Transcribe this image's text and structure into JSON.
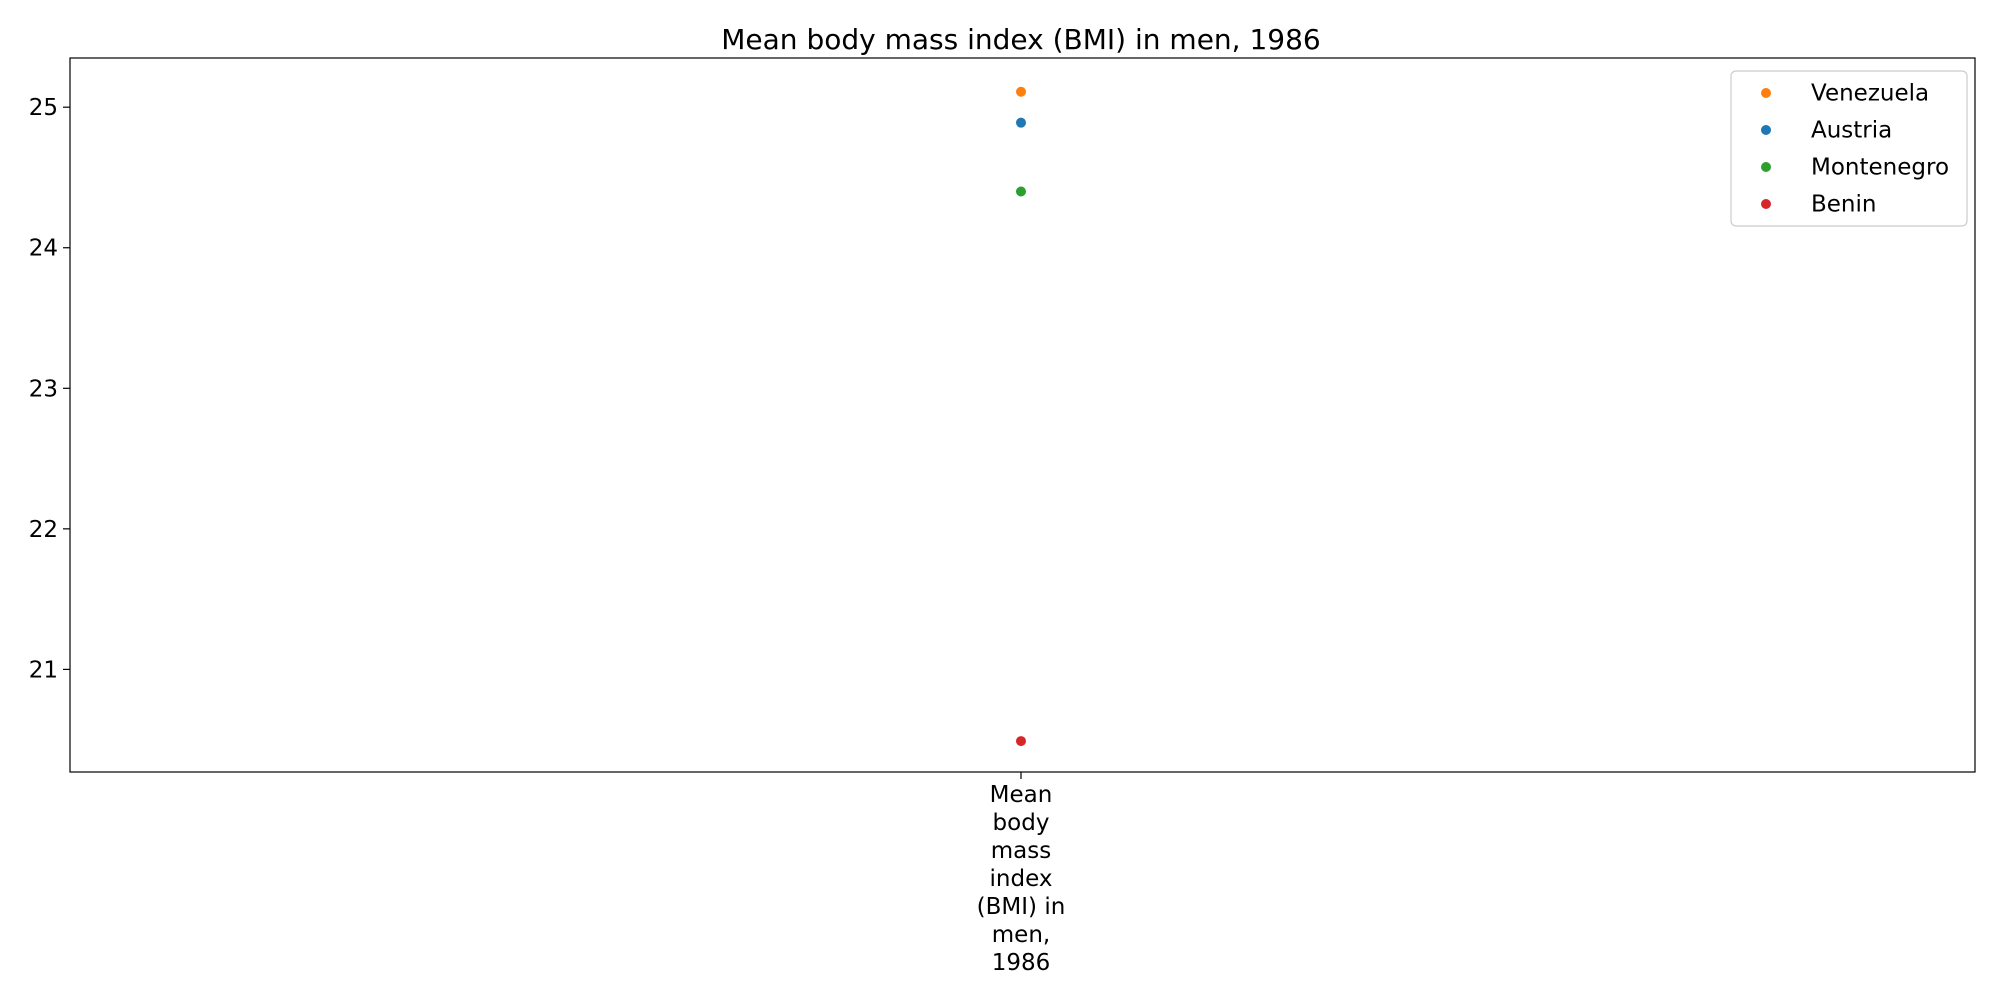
{
  "chart_data": {
    "type": "scatter",
    "title": "Mean body mass index (BMI) in men, 1986",
    "xlabel": "",
    "ylabel": "",
    "categories": [
      "Mean body mass index (BMI) in men, 1986"
    ],
    "category_label_lines": [
      "Mean",
      "body",
      "mass",
      "index",
      "(BMI) in",
      "men,",
      "1986"
    ],
    "ylim": [
      20.27,
      25.35
    ],
    "yticks": [
      21,
      22,
      23,
      24,
      25
    ],
    "grid": false,
    "legend_position": "top-right",
    "series": [
      {
        "name": "Venezuela",
        "color": "#ff7f0e",
        "values": [
          25.11
        ]
      },
      {
        "name": "Austria",
        "color": "#1f77b4",
        "values": [
          24.89
        ]
      },
      {
        "name": "Montenegro",
        "color": "#2ca02c",
        "values": [
          24.4
        ]
      },
      {
        "name": "Benin",
        "color": "#d62728",
        "values": [
          20.49
        ]
      }
    ]
  }
}
